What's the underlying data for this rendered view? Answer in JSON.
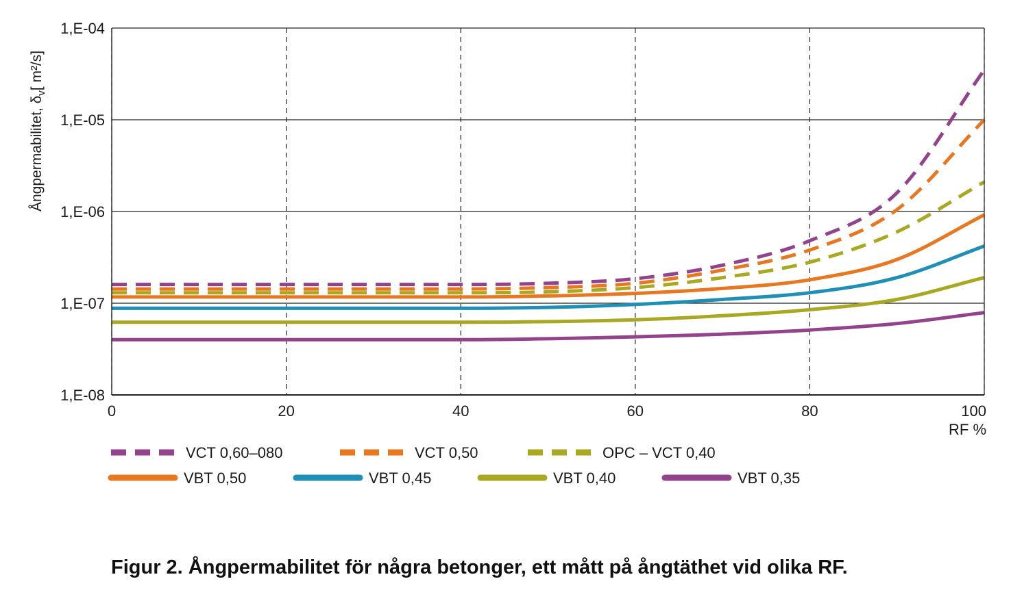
{
  "chart_data": {
    "type": "line",
    "ylabel": "Ångpermabilitet, δv [ m²/s]",
    "ylabel_main": "Ångpermabilitet, δ",
    "ylabel_sub": "v",
    "ylabel_unit": "[ m²/s]",
    "xlabel": "RF %",
    "xlim": [
      0,
      100
    ],
    "ylim": [
      1e-08,
      0.0001
    ],
    "yscale": "log",
    "x_ticks": [
      0,
      20,
      40,
      60,
      80,
      100
    ],
    "x_tick_labels": [
      "0",
      "20",
      "40",
      "60",
      "80",
      "100"
    ],
    "y_ticks": [
      1e-08,
      1e-07,
      1e-06,
      1e-05,
      0.0001
    ],
    "y_tick_labels": [
      "1,E-08",
      "1,E-07",
      "1,E-06",
      "1,E-05",
      "1,E-04"
    ],
    "grid": {
      "horizontal": "solid",
      "vertical": "dashed"
    },
    "legend_position": "bottom",
    "x": [
      0,
      40,
      50,
      60,
      70,
      80,
      90,
      100
    ],
    "series": [
      {
        "name": "VCT 0,60–080",
        "color": "#93428c",
        "style": "dashed",
        "values": [
          1.6e-07,
          1.6e-07,
          1.65e-07,
          1.85e-07,
          2.6e-07,
          4.8e-07,
          1.6e-06,
          3.5e-05
        ]
      },
      {
        "name": "VCT 0,50",
        "color": "#e87722",
        "style": "dashed",
        "values": [
          1.43e-07,
          1.43e-07,
          1.48e-07,
          1.65e-07,
          2.3e-07,
          3.8e-07,
          1.05e-06,
          1e-05
        ]
      },
      {
        "name": "OPC – VCT 0,40",
        "color": "#a9a823",
        "style": "dashed",
        "values": [
          1.3e-07,
          1.3e-07,
          1.33e-07,
          1.48e-07,
          1.9e-07,
          2.8e-07,
          6e-07,
          2.1e-06
        ]
      },
      {
        "name": "VBT 0,50",
        "color": "#e87722",
        "style": "solid",
        "values": [
          1.17e-07,
          1.17e-07,
          1.2e-07,
          1.28e-07,
          1.45e-07,
          1.8e-07,
          3e-07,
          9.2e-07
        ]
      },
      {
        "name": "VBT 0,45",
        "color": "#1f8fb5",
        "style": "solid",
        "values": [
          8.8e-08,
          8.8e-08,
          9e-08,
          9.7e-08,
          1.1e-07,
          1.3e-07,
          1.9e-07,
          4.2e-07
        ]
      },
      {
        "name": "VBT 0,40",
        "color": "#a9a823",
        "style": "solid",
        "values": [
          6.2e-08,
          6.2e-08,
          6.3e-08,
          6.6e-08,
          7.3e-08,
          8.5e-08,
          1.1e-07,
          1.9e-07
        ]
      },
      {
        "name": "VBT 0,35",
        "color": "#93428c",
        "style": "solid",
        "values": [
          4e-08,
          4e-08,
          4.1e-08,
          4.3e-08,
          4.6e-08,
          5.1e-08,
          6e-08,
          7.9e-08
        ]
      }
    ]
  },
  "caption": "Figur 2. Ångpermabilitet för några betonger, ett mått på ångtäthet vid olika RF."
}
